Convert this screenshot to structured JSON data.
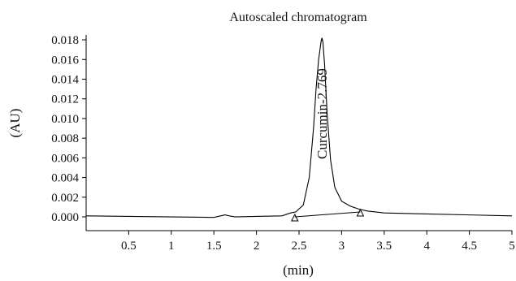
{
  "chart_data": {
    "type": "line",
    "title": "Autoscaled chromatogram",
    "xlabel": "(min)",
    "ylabel": "(AU)",
    "xlim": [
      0,
      5
    ],
    "ylim": [
      -0.0014,
      0.0185
    ],
    "x_ticks": [
      0.5,
      1,
      1.5,
      2,
      2.5,
      3,
      3.5,
      4,
      4.5,
      5
    ],
    "x_tick_labels": [
      "0.5",
      "1",
      "1.5",
      "2",
      "2.5",
      "3",
      "3.5",
      "4",
      "4.5",
      "5"
    ],
    "y_ticks": [
      0,
      0.002,
      0.004,
      0.006,
      0.008,
      0.01,
      0.012,
      0.014,
      0.016,
      0.018
    ],
    "y_tick_labels": [
      "0.000",
      "0.002",
      "0.004",
      "0.006",
      "0.008",
      "0.010",
      "0.012",
      "0.014",
      "0.016",
      "0.018"
    ],
    "grid": false,
    "series": [
      {
        "x": [
          0,
          0.5,
          1.0,
          1.5,
          1.58,
          1.63,
          1.68,
          1.75,
          2.0,
          2.3,
          2.4,
          2.46,
          2.55,
          2.62,
          2.67,
          2.7,
          2.73,
          2.76,
          2.769,
          2.78,
          2.8,
          2.83,
          2.87,
          2.92,
          3.0,
          3.1,
          3.2,
          3.3,
          3.5,
          4.0,
          4.5,
          5.0
        ],
        "y": [
          0.0001,
          5e-05,
          0.0,
          -5e-05,
          0.0001,
          0.0002,
          0.0001,
          0.0,
          5e-05,
          0.0001,
          0.0004,
          0.0005,
          0.0012,
          0.004,
          0.009,
          0.013,
          0.016,
          0.0179,
          0.0182,
          0.0178,
          0.0155,
          0.0105,
          0.0058,
          0.003,
          0.0016,
          0.0011,
          0.0008,
          0.0006,
          0.0004,
          0.0003,
          0.0002,
          0.0001
        ]
      }
    ],
    "baseline": {
      "x": [
        2.45,
        3.22
      ],
      "y": [
        0.0,
        0.0005
      ]
    },
    "markers": [
      {
        "x": 2.45,
        "y": 0.0,
        "symbol": "triangle"
      },
      {
        "x": 3.22,
        "y": 0.0005,
        "symbol": "triangle"
      }
    ],
    "peak_annotation": {
      "text": "Curcumin-2.769",
      "x": 2.769
    }
  }
}
